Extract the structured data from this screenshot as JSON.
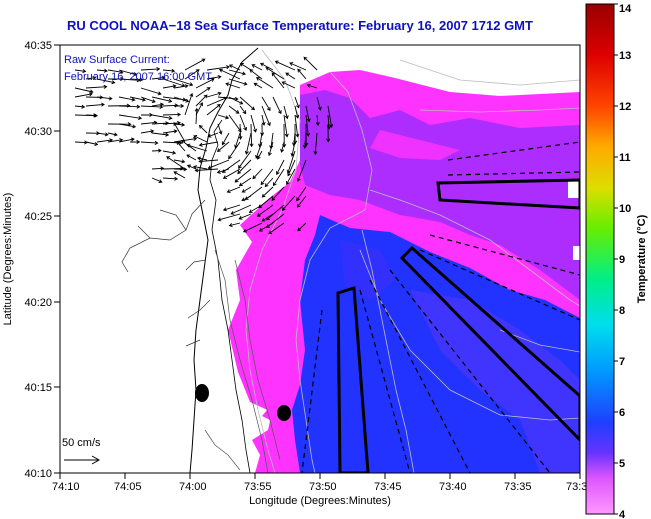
{
  "title": "RU COOL  NOAA−18  Sea Surface Temperature:  February 16, 2007 1712 GMT",
  "current_legend": {
    "line1": "Raw Surface Current:",
    "line2": "February 16, 2007 16:00 GMT"
  },
  "scale_label": "50 cm/s",
  "axes": {
    "xlabel": "Longitude (Degrees:Minutes)",
    "ylabel": "Latitude (Degrees:Minutes)",
    "x_ticks": [
      "74:10",
      "74:05",
      "74:00",
      "73:55",
      "73:50",
      "73:45",
      "73:40",
      "73:35",
      "73:3"
    ],
    "y_ticks": [
      "40:35",
      "40:30",
      "40:25",
      "40:20",
      "40:15",
      "40:10"
    ]
  },
  "colorbar": {
    "label": "Temperature (°C)",
    "min": 4,
    "max": 14,
    "ticks": [
      "4",
      "5",
      "6",
      "7",
      "8",
      "9",
      "10",
      "11",
      "12",
      "13",
      "14"
    ]
  },
  "colors": {
    "title": "#1010c0",
    "land": "#ffffff",
    "warm_water": "#ff33ff",
    "mid_water": "#9933ff",
    "cold_water": "#2233ff"
  },
  "markers": [
    {
      "name": "station-1",
      "lon": -74.015,
      "lat": 40.245
    },
    {
      "name": "station-2",
      "lon": -73.94,
      "lat": 40.225
    }
  ]
}
